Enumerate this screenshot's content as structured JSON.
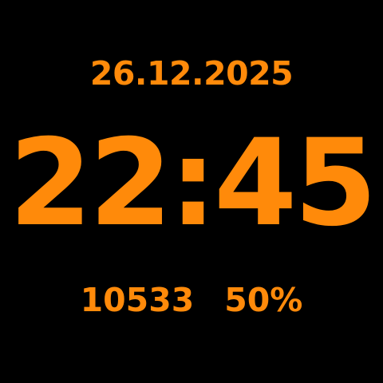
{
  "colors": {
    "background": "#000000",
    "accent": "#FF8A0A"
  },
  "watch_face": {
    "date": "26.12.2025",
    "time": "22:45",
    "steps": "10533",
    "battery": "50%"
  }
}
